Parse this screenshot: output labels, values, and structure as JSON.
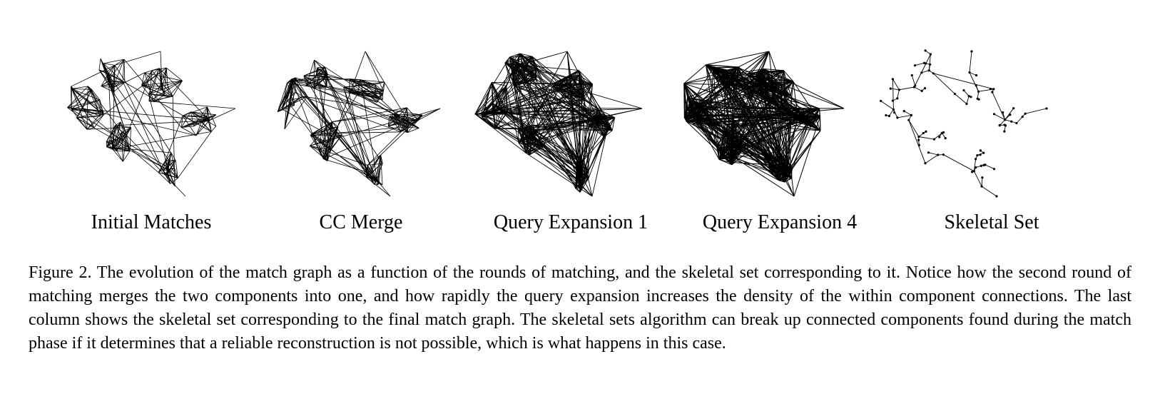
{
  "figure": {
    "panels": [
      {
        "label": "Initial Matches",
        "density": "sparse"
      },
      {
        "label": "CC Merge",
        "density": "sparse-merged"
      },
      {
        "label": "Query Expansion 1",
        "density": "dense"
      },
      {
        "label": "Query Expansion 4",
        "density": "very-dense"
      },
      {
        "label": "Skeletal Set",
        "density": "skeleton"
      }
    ],
    "caption": "Figure 2. The evolution of the match graph as a function of the rounds of matching, and the skeletal set corresponding to it. Notice how the second round of matching merges the two components into one, and how rapidly the query expansion increases the density of the within component connections. The last column shows the skeletal set corresponding to the final match graph. The skeletal sets algorithm can break up connected components found during the match phase if it determines that a reliable reconstruction is not possible, which is what happens in this case."
  }
}
